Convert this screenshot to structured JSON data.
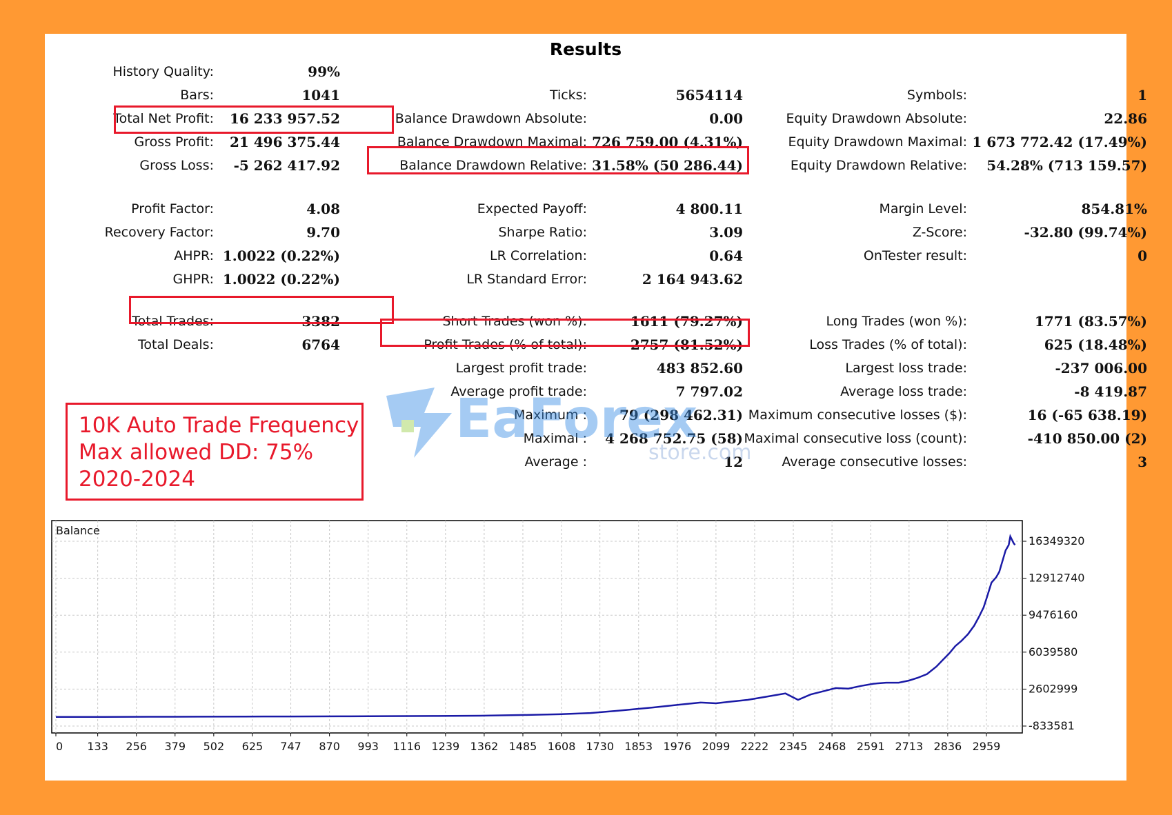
{
  "report": {
    "title": "Results",
    "history_quality": {
      "label": "History Quality:",
      "value": "99%"
    },
    "col1": [
      {
        "label": "Bars:",
        "value": "1041"
      },
      {
        "label": "Total Net Profit:",
        "value": "16 233 957.52"
      },
      {
        "label": "Gross Profit:",
        "value": "21 496 375.44"
      },
      {
        "label": "Gross Loss:",
        "value": "-5 262 417.92"
      },
      {
        "label": "Profit Factor:",
        "value": "4.08"
      },
      {
        "label": "Recovery Factor:",
        "value": "9.70"
      },
      {
        "label": "AHPR:",
        "value": "1.0022 (0.22%)"
      },
      {
        "label": "GHPR:",
        "value": "1.0022 (0.22%)"
      },
      {
        "label": "Total Trades:",
        "value": "3382"
      },
      {
        "label": "Total Deals:",
        "value": "6764"
      }
    ],
    "col2": [
      {
        "label": "Ticks:",
        "value": "5654114"
      },
      {
        "label": "Balance Drawdown Absolute:",
        "value": "0.00"
      },
      {
        "label": "Balance Drawdown Maximal:",
        "value": "726 759.00 (4.31%)"
      },
      {
        "label": "Balance Drawdown Relative:",
        "value": "31.58% (50 286.44)"
      },
      {
        "label": "Expected Payoff:",
        "value": "4 800.11"
      },
      {
        "label": "Sharpe Ratio:",
        "value": "3.09"
      },
      {
        "label": "LR Correlation:",
        "value": "0.64"
      },
      {
        "label": "LR Standard Error:",
        "value": "2 164 943.62"
      },
      {
        "label": "Short Trades (won %):",
        "value": "1611 (79.27%)"
      },
      {
        "label": "Profit Trades (% of total):",
        "value": "2757 (81.52%)"
      },
      {
        "label": "Largest profit trade:",
        "value": "483 852.60"
      },
      {
        "label": "Average profit trade:",
        "value": "7 797.02"
      },
      {
        "label": "Maximum :",
        "value": "79 (298 462.31)"
      },
      {
        "label": "Maximal :",
        "value": "4 268 752.75 (58)"
      },
      {
        "label": "Average :",
        "value": "12"
      }
    ],
    "col3": [
      {
        "label": "Symbols:",
        "value": "1"
      },
      {
        "label": "Equity Drawdown Absolute:",
        "value": "22.86"
      },
      {
        "label": "Equity Drawdown Maximal:",
        "value": "1 673 772.42 (17.49%)"
      },
      {
        "label": "Equity Drawdown Relative:",
        "value": "54.28% (713 159.57)"
      },
      {
        "label": "Margin Level:",
        "value": "854.81%"
      },
      {
        "label": "Z-Score:",
        "value": "-32.80 (99.74%)"
      },
      {
        "label": "OnTester result:",
        "value": "0"
      },
      {
        "label": "Long Trades (won %):",
        "value": "1771 (83.57%)"
      },
      {
        "label": "Loss Trades (% of total):",
        "value": "625 (18.48%)"
      },
      {
        "label": "Largest loss trade:",
        "value": "-237 006.00"
      },
      {
        "label": "Average loss trade:",
        "value": "-8 419.87"
      },
      {
        "label": "Maximum consecutive losses ($):",
        "value": "16 (-65 638.19)"
      },
      {
        "label": "Maximal consecutive loss (count):",
        "value": "-410 850.00 (2)"
      },
      {
        "label": "Average consecutive losses:",
        "value": "3"
      }
    ]
  },
  "note": {
    "line1": "10K Auto Trade Frequency",
    "line2": "Max allowed DD: 75%",
    "line3": "2020-2024"
  },
  "watermark": {
    "brand": "EaForex",
    "sub": "store.com"
  },
  "colors": {
    "background": "#ff9933",
    "highlight": "#e8192b",
    "line": "#1a1aa6",
    "grid": "#c8c8c8"
  },
  "chart_data": {
    "type": "line",
    "title": "Balance",
    "xlabel": "",
    "ylabel": "",
    "x_ticks": [
      0,
      133,
      256,
      379,
      502,
      625,
      747,
      870,
      993,
      1116,
      1239,
      1362,
      1485,
      1608,
      1730,
      1853,
      1976,
      2099,
      2222,
      2345,
      2468,
      2591,
      2713,
      2836,
      2959
    ],
    "y_tick_labels": [
      "16349320",
      "12912740",
      "9476160",
      "6039580",
      "2602999",
      "-833581"
    ],
    "y_ticks": [
      16349320,
      12912740,
      9476160,
      6039580,
      2602999,
      -833581
    ],
    "xlim": [
      0,
      3060
    ],
    "ylim": [
      -833581,
      17300000
    ],
    "grid": true,
    "series": [
      {
        "values_x": [
          0,
          150,
          300,
          450,
          600,
          750,
          900,
          1050,
          1200,
          1350,
          1500,
          1600,
          1700,
          1800,
          1900,
          1980,
          2050,
          2099,
          2150,
          2200,
          2260,
          2320,
          2360,
          2400,
          2440,
          2480,
          2520,
          2560,
          2600,
          2640,
          2680,
          2713,
          2740,
          2770,
          2800,
          2820,
          2840,
          2860,
          2880,
          2900,
          2920,
          2935,
          2950,
          2959,
          2975,
          2990,
          3000,
          3010,
          3020,
          3030,
          3035,
          3045,
          3050
        ],
        "values": [
          10000,
          12000,
          30000,
          40000,
          50000,
          60000,
          70000,
          90000,
          100000,
          130000,
          200000,
          260000,
          380000,
          620000,
          900000,
          1150000,
          1350000,
          1280000,
          1450000,
          1600000,
          1900000,
          2200000,
          1600000,
          2100000,
          2400000,
          2700000,
          2650000,
          2900000,
          3100000,
          3200000,
          3200000,
          3400000,
          3650000,
          4000000,
          4700000,
          5300000,
          5900000,
          6600000,
          7100000,
          7700000,
          8500000,
          9300000,
          10200000,
          11000000,
          12500000,
          13000000,
          13500000,
          14500000,
          15500000,
          16000000,
          16800000,
          16200000,
          16000000
        ]
      }
    ]
  }
}
